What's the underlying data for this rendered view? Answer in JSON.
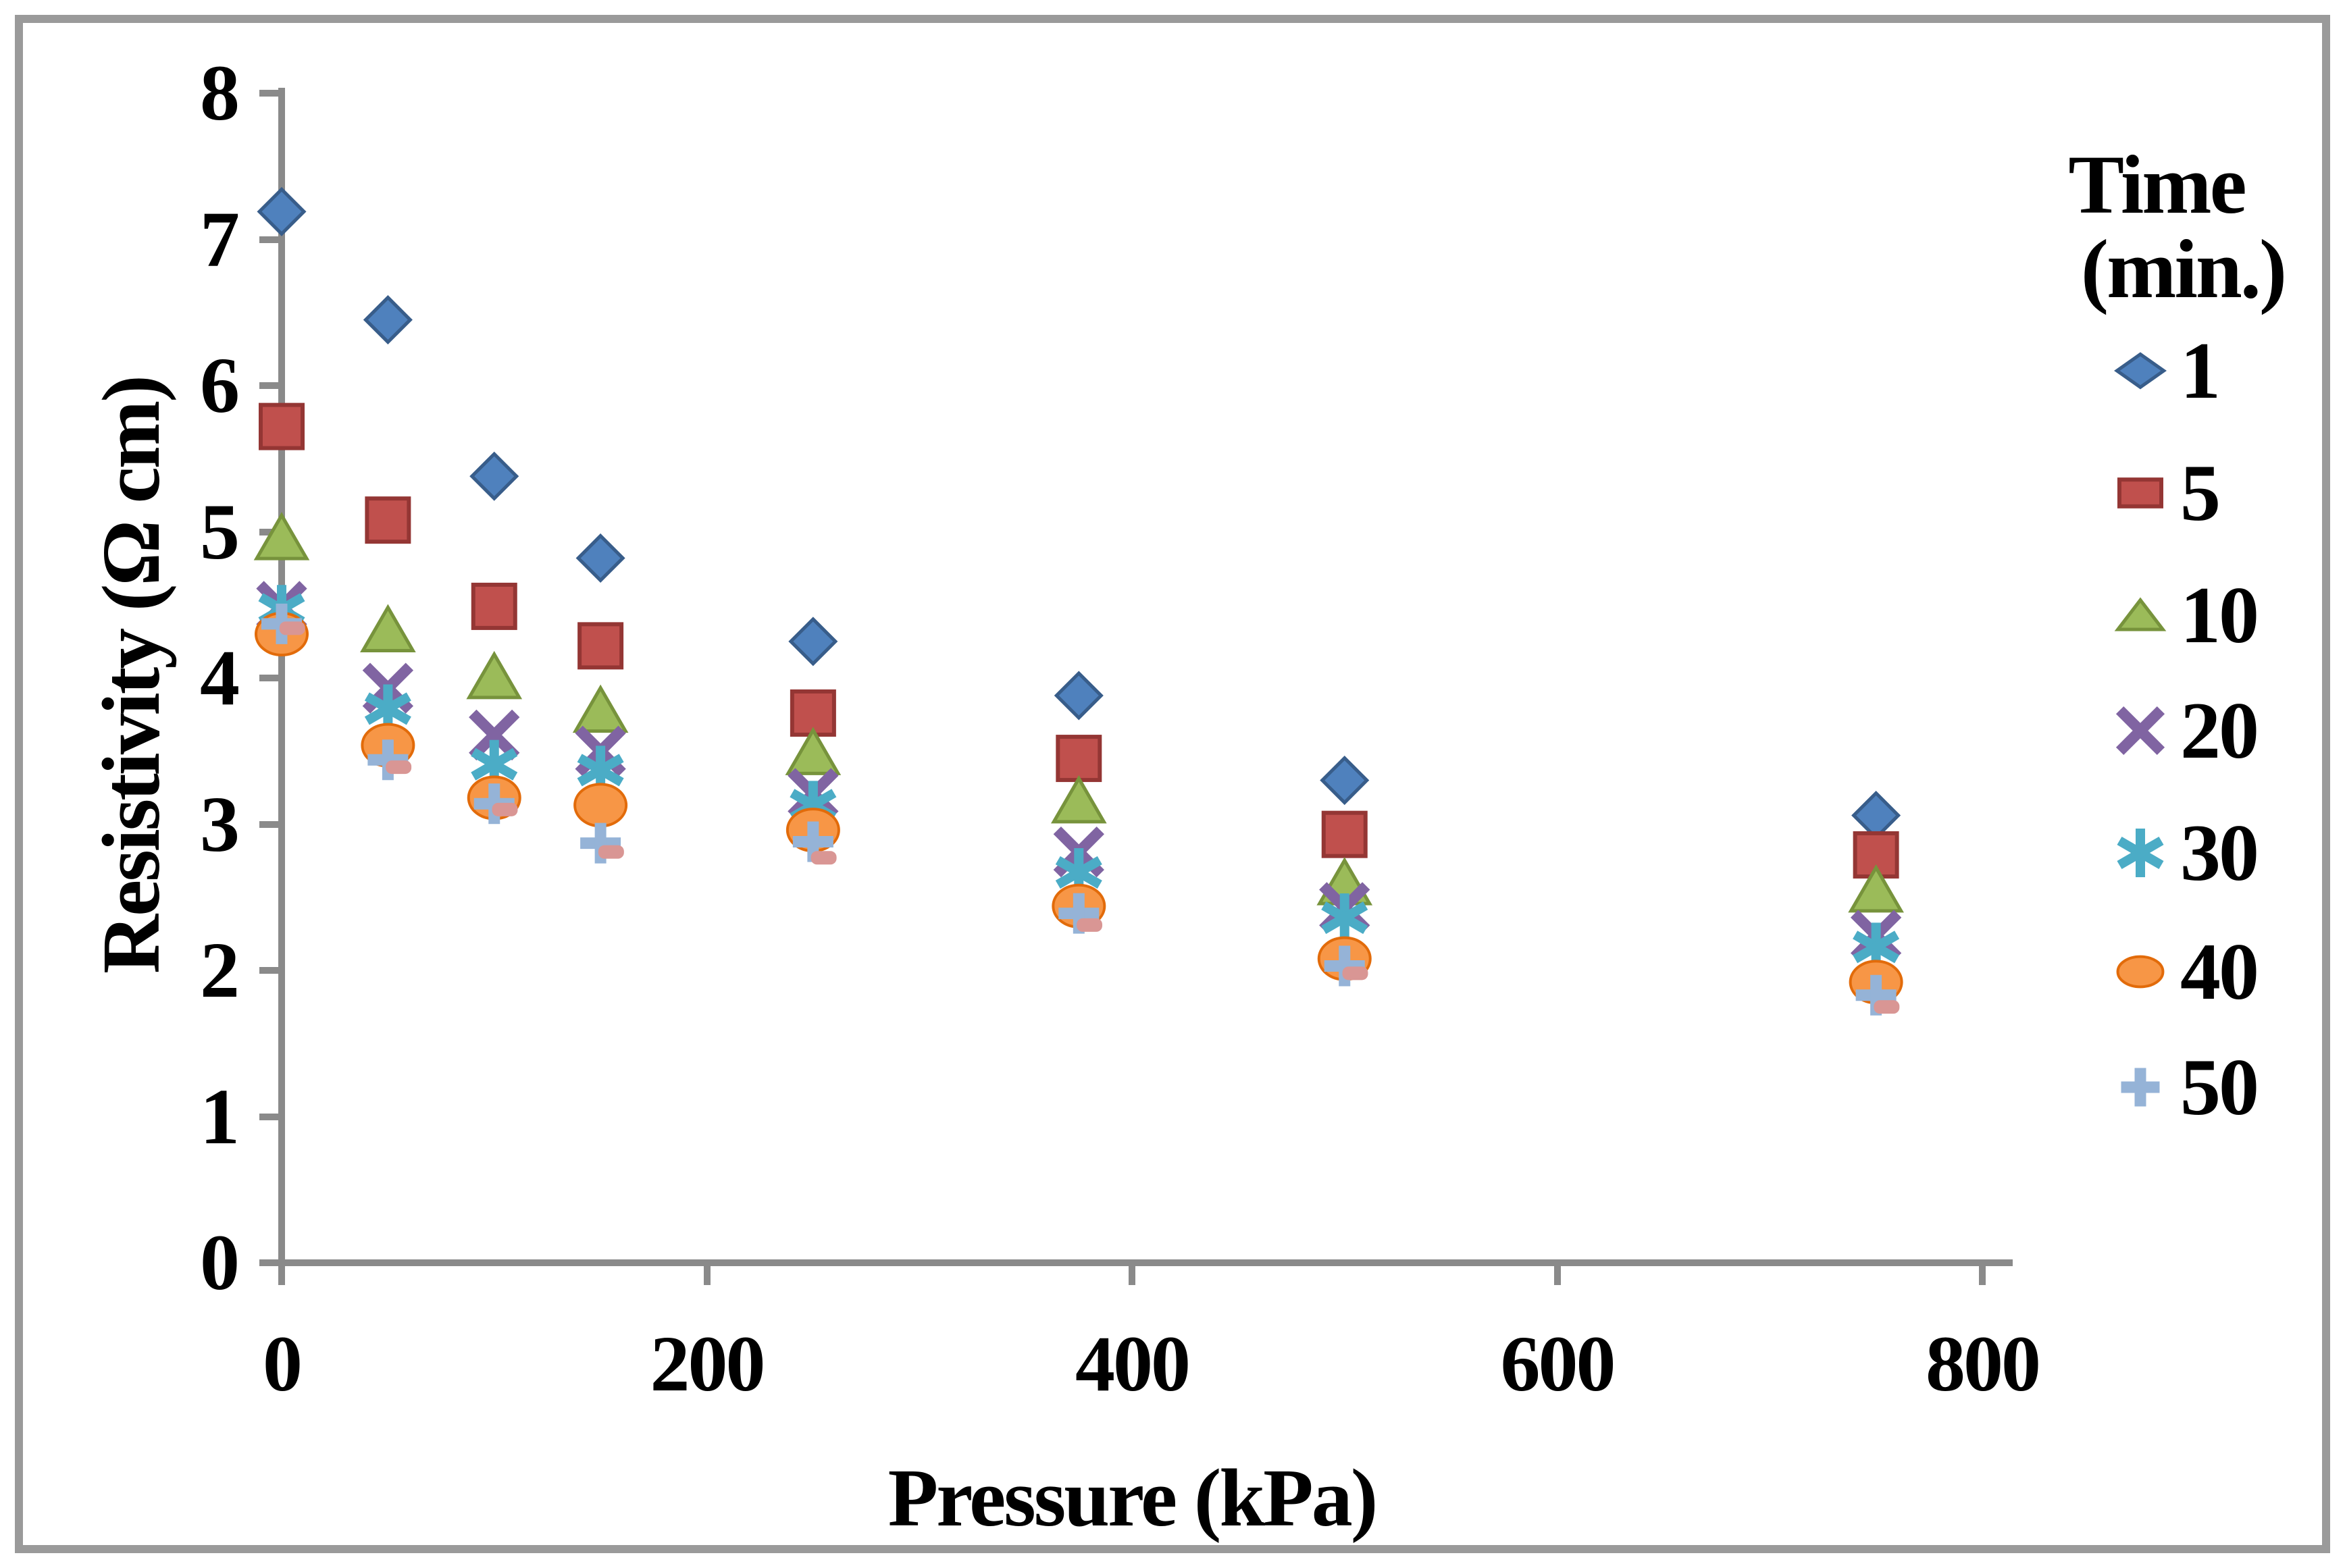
{
  "chart_data": {
    "type": "scatter",
    "title": "",
    "xlabel": "Pressure (kPa)",
    "ylabel": "Resistivity (Ω cm)",
    "xlim": [
      0,
      800
    ],
    "ylim": [
      0,
      8
    ],
    "x_ticks": [
      0,
      200,
      400,
      600,
      800
    ],
    "y_ticks": [
      0,
      1,
      2,
      3,
      4,
      5,
      6,
      7,
      8
    ],
    "grid": "off",
    "legend_position": "right",
    "legend_title_line1": "Time",
    "legend_title_line2": "(min.)",
    "x": [
      0,
      50,
      100,
      150,
      250,
      375,
      500,
      750
    ],
    "series": [
      {
        "name": "1",
        "marker": "diamond",
        "color": "#4F81BD",
        "border": "#385D8A",
        "in_legend": true,
        "values": [
          7.19,
          6.45,
          5.38,
          4.82,
          4.25,
          3.88,
          3.3,
          3.06
        ]
      },
      {
        "name": "5",
        "marker": "square",
        "color": "#C0504D",
        "border": "#943634",
        "in_legend": true,
        "values": [
          5.72,
          5.08,
          4.49,
          4.22,
          3.76,
          3.45,
          2.93,
          2.79
        ]
      },
      {
        "name": "10",
        "marker": "triangle",
        "color": "#9BBB59",
        "border": "#77933C",
        "in_legend": true,
        "values": [
          4.96,
          4.33,
          4.01,
          3.78,
          3.49,
          3.16,
          2.6,
          2.55
        ]
      },
      {
        "name": "20",
        "marker": "x",
        "color": "#8064A2",
        "border": "#8064A2",
        "in_legend": true,
        "values": [
          4.49,
          3.93,
          3.61,
          3.5,
          3.21,
          2.81,
          2.43,
          2.24
        ]
      },
      {
        "name": "30",
        "marker": "asterisk",
        "color": "#4BACC6",
        "border": "#4BACC6",
        "in_legend": true,
        "values": [
          4.47,
          3.79,
          3.41,
          3.37,
          3.13,
          2.67,
          2.36,
          2.16
        ]
      },
      {
        "name": "40",
        "marker": "circle",
        "color": "#F79646",
        "border": "#E26B0A",
        "in_legend": true,
        "values": [
          4.3,
          3.54,
          3.18,
          3.13,
          2.96,
          2.44,
          2.08,
          1.92
        ]
      },
      {
        "name": "50",
        "marker": "plus",
        "color": "#95B3D7",
        "border": "#95B3D7",
        "in_legend": true,
        "values": [
          4.37,
          3.44,
          3.14,
          2.87,
          2.88,
          2.39,
          2.03,
          1.83
        ]
      },
      {
        "name": "",
        "marker": "dash",
        "color": "#D99694",
        "border": "#D99694",
        "in_legend": false,
        "x_offset_kpa": 5,
        "values": [
          4.34,
          3.39,
          3.1,
          2.81,
          2.77,
          2.31,
          1.98,
          1.75
        ]
      }
    ]
  }
}
